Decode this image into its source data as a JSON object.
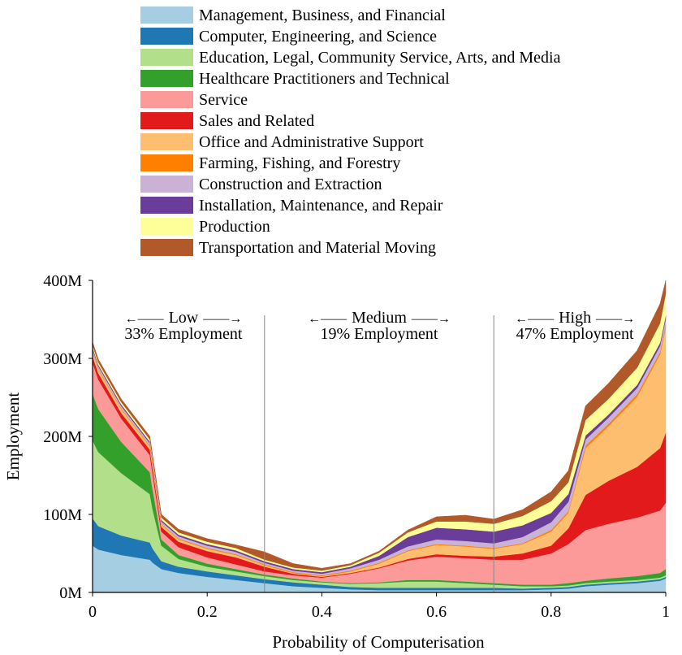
{
  "chart_data": {
    "type": "area",
    "stacked": true,
    "xlabel": "Probability of Computerisation",
    "ylabel": "Employment",
    "xlim": [
      0,
      1
    ],
    "ylim": [
      0,
      400
    ],
    "x_ticks": [
      {
        "value": 0,
        "label": "0"
      },
      {
        "value": 0.2,
        "label": "0.2"
      },
      {
        "value": 0.4,
        "label": "0.4"
      },
      {
        "value": 0.6,
        "label": "0.6"
      },
      {
        "value": 0.8,
        "label": "0.8"
      },
      {
        "value": 1,
        "label": "1"
      }
    ],
    "y_ticks": [
      {
        "value": 0,
        "label": "0M"
      },
      {
        "value": 100,
        "label": "100M"
      },
      {
        "value": 200,
        "label": "200M"
      },
      {
        "value": 300,
        "label": "300M"
      },
      {
        "value": 400,
        "label": "400M"
      }
    ],
    "regions": [
      {
        "arrow_left": "←——",
        "name": "Low",
        "arrow_right": "——→",
        "share": "33% Employment"
      },
      {
        "arrow_left": "←——",
        "name": "Medium",
        "arrow_right": "——→",
        "share": "19% Employment"
      },
      {
        "arrow_left": "←——",
        "name": "High",
        "arrow_right": "——→",
        "share": "47% Employment"
      }
    ],
    "boundaries": [
      0.3,
      0.7
    ],
    "legend_position": "top",
    "x": [
      0,
      0.01,
      0.05,
      0.1,
      0.105,
      0.12,
      0.15,
      0.2,
      0.25,
      0.3,
      0.35,
      0.4,
      0.45,
      0.5,
      0.55,
      0.6,
      0.65,
      0.7,
      0.75,
      0.8,
      0.83,
      0.86,
      0.9,
      0.95,
      0.99,
      1
    ],
    "series": [
      {
        "name": "Management, Business, and Financial",
        "color": "#a6cee3",
        "values": [
          60,
          55,
          48,
          42,
          38,
          30,
          25,
          20,
          16,
          12,
          8,
          6,
          4,
          3,
          3,
          3,
          3,
          3,
          3,
          4,
          5,
          8,
          10,
          12,
          15,
          18
        ]
      },
      {
        "name": "Computer, Engineering, and Science",
        "color": "#1f78b4",
        "values": [
          35,
          30,
          25,
          22,
          18,
          10,
          8,
          7,
          6,
          5,
          5,
          4,
          3,
          3,
          3,
          3,
          3,
          3,
          2,
          2,
          2,
          2,
          2,
          2,
          2,
          2
        ]
      },
      {
        "name": "Education, Legal, Community Service, Arts, and Media",
        "color": "#b2df8a",
        "values": [
          100,
          95,
          80,
          62,
          50,
          20,
          10,
          6,
          5,
          4,
          3,
          3,
          4,
          6,
          8,
          8,
          6,
          4,
          3,
          2,
          2,
          2,
          2,
          2,
          2,
          2
        ]
      },
      {
        "name": "Healthcare Practitioners and Technical",
        "color": "#33a02c",
        "values": [
          60,
          55,
          40,
          28,
          25,
          8,
          5,
          4,
          3,
          2,
          2,
          1,
          1,
          1,
          2,
          2,
          2,
          2,
          2,
          2,
          3,
          3,
          4,
          5,
          6,
          8
        ]
      },
      {
        "name": "Service",
        "color": "#fb9a99",
        "values": [
          40,
          38,
          30,
          22,
          20,
          10,
          10,
          8,
          6,
          4,
          4,
          5,
          12,
          18,
          25,
          30,
          30,
          30,
          32,
          40,
          50,
          65,
          70,
          75,
          80,
          85
        ]
      },
      {
        "name": "Sales and Related",
        "color": "#e31a1c",
        "values": [
          8,
          8,
          7,
          7,
          7,
          6,
          7,
          8,
          9,
          6,
          2,
          1,
          1,
          1,
          2,
          3,
          3,
          4,
          8,
          10,
          20,
          45,
          55,
          65,
          80,
          90
        ]
      },
      {
        "name": "Office and Administrative Support",
        "color": "#fdbf6f",
        "values": [
          5,
          5,
          5,
          4,
          4,
          3,
          3,
          3,
          3,
          2,
          1,
          1,
          2,
          5,
          10,
          12,
          12,
          10,
          12,
          18,
          20,
          60,
          70,
          90,
          120,
          135
        ]
      },
      {
        "name": "Farming, Fishing, and Forestry",
        "color": "#ff7f00",
        "values": [
          1,
          1,
          1,
          1,
          1,
          1,
          1,
          1,
          1,
          1,
          1,
          1,
          1,
          1,
          1,
          1,
          1,
          1,
          1,
          2,
          2,
          3,
          3,
          3,
          3,
          3
        ]
      },
      {
        "name": "Construction and Extraction",
        "color": "#cab2d6",
        "values": [
          3,
          3,
          3,
          3,
          3,
          3,
          3,
          3,
          3,
          2,
          2,
          2,
          3,
          4,
          5,
          6,
          6,
          6,
          8,
          10,
          12,
          8,
          8,
          8,
          8,
          8
        ]
      },
      {
        "name": "Installation, Maintenance, and Repair",
        "color": "#6a3d9a",
        "values": [
          2,
          2,
          2,
          2,
          2,
          2,
          2,
          2,
          2,
          2,
          2,
          2,
          2,
          5,
          12,
          15,
          15,
          15,
          15,
          12,
          10,
          5,
          4,
          4,
          4,
          4
        ]
      },
      {
        "name": "Production",
        "color": "#ffff99",
        "values": [
          3,
          3,
          3,
          3,
          3,
          3,
          3,
          3,
          3,
          2,
          2,
          2,
          2,
          4,
          6,
          8,
          10,
          10,
          12,
          15,
          15,
          20,
          20,
          22,
          25,
          28
        ]
      },
      {
        "name": "Transportation and Material Moving",
        "color": "#b15928",
        "values": [
          4,
          4,
          4,
          4,
          4,
          4,
          4,
          4,
          4,
          10,
          5,
          3,
          2,
          2,
          3,
          6,
          8,
          6,
          8,
          12,
          15,
          18,
          20,
          22,
          25,
          17
        ]
      }
    ]
  }
}
